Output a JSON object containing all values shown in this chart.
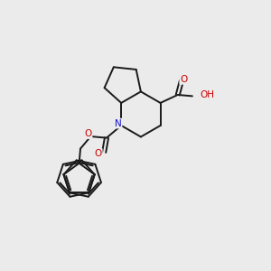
{
  "background_color": "#ebebeb",
  "bond_color": "#1a1a1a",
  "atom_colors": {
    "O": "#cc0000",
    "N": "#1414cc",
    "H": "#7a9a9a",
    "C": "#1a1a1a"
  },
  "figsize": [
    3.0,
    3.0
  ],
  "dpi": 100,
  "bond_lw": 1.4,
  "font_size": 7.5
}
